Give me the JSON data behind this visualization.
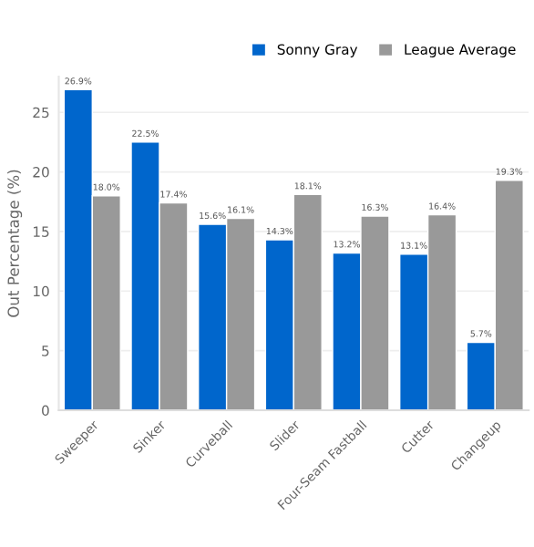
{
  "chart_data": {
    "type": "bar",
    "ylabel": "Out Percentage (%)",
    "categories": [
      "Sweeper",
      "Sinker",
      "Curveball",
      "Slider",
      "Four-Seam Fastball",
      "Cutter",
      "Changeup"
    ],
    "series": [
      {
        "name": "Sonny Gray",
        "color": "#0066cc",
        "values": [
          26.9,
          22.5,
          15.6,
          14.3,
          13.2,
          13.1,
          5.7
        ],
        "value_labels": [
          "26.9%",
          "22.5%",
          "15.6%",
          "14.3%",
          "13.2%",
          "13.1%",
          "5.7%"
        ]
      },
      {
        "name": "League Average",
        "color": "#999999",
        "values": [
          18.0,
          17.4,
          16.1,
          18.1,
          16.3,
          16.4,
          19.3
        ],
        "value_labels": [
          "18.0%",
          "17.4%",
          "16.1%",
          "18.1%",
          "16.3%",
          "16.4%",
          "19.3%"
        ]
      }
    ],
    "ylim": [
      0,
      28
    ],
    "yticks": [
      0,
      5,
      10,
      15,
      20,
      25
    ],
    "grid": "y",
    "legend": "top right"
  }
}
